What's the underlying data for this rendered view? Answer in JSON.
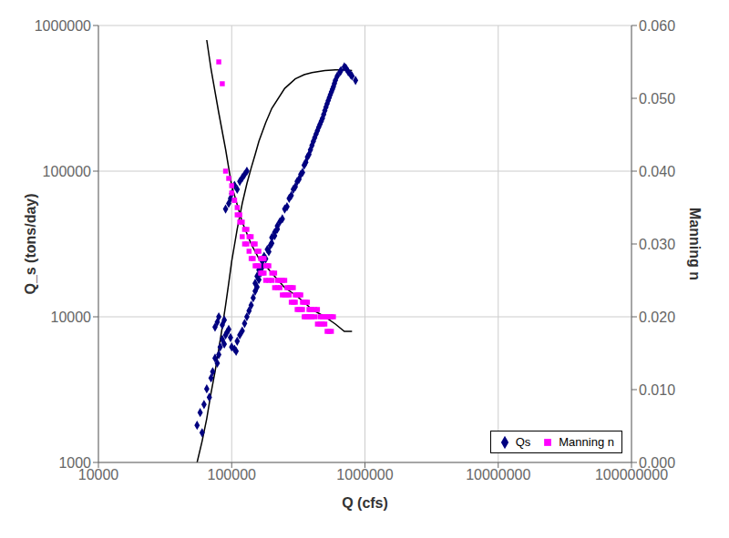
{
  "chart_data": {
    "type": "scatter",
    "xlabel": "Q (cfs)",
    "ylabel": "Q_s (tons/day)",
    "y2label": "Manning n",
    "log": true,
    "grid": true,
    "legend": "lower right",
    "xlim": [
      10000,
      100000000
    ],
    "xticks": [
      10000,
      100000,
      1000000,
      10000000,
      100000000
    ],
    "ylim": [
      1000,
      1000000
    ],
    "yticks": [
      1000,
      10000,
      100000,
      1000000
    ],
    "y2lim": [
      0.0,
      0.06
    ],
    "y2ticks": [
      {
        "value": 0.0,
        "label": "0.000"
      },
      {
        "value": 0.01,
        "label": "0.010"
      },
      {
        "value": 0.02,
        "label": "0.020"
      },
      {
        "value": 0.03,
        "label": "0.030"
      },
      {
        "value": 0.04,
        "label": "0.040"
      },
      {
        "value": 0.05,
        "label": "0.050"
      },
      {
        "value": 0.06,
        "label": "0.060"
      }
    ],
    "series": [
      {
        "name": "Qs",
        "type": "scatter",
        "marker": "diamond",
        "color": "#000080",
        "x": [
          55000,
          58000,
          60000,
          62000,
          65000,
          68000,
          70000,
          72000,
          75000,
          78000,
          80000,
          82000,
          85000,
          88000,
          90000,
          92000,
          95000,
          98000,
          100000,
          105000,
          108000,
          110000,
          115000,
          120000,
          125000,
          130000,
          135000,
          140000,
          145000,
          150000,
          155000,
          160000,
          165000,
          170000,
          180000,
          190000,
          200000,
          210000,
          220000,
          230000,
          250000,
          270000,
          290000,
          310000,
          330000,
          350000,
          380000,
          400000,
          420000,
          440000,
          460000,
          480000,
          500000,
          520000,
          540000,
          560000,
          580000,
          600000,
          650000,
          700000,
          750000,
          800000,
          850000,
          90000,
          95000,
          98000,
          100000,
          105000,
          110000,
          115000,
          120000,
          125000,
          130000,
          75000,
          78000,
          80000,
          85000,
          88000,
          150000,
          155000,
          160000,
          170000,
          175000,
          185000,
          195000,
          200000,
          210000,
          220000,
          240000,
          260000,
          280000,
          300000,
          320000,
          340000,
          360000,
          370000,
          390000,
          410000,
          430000,
          450000,
          470000,
          490000,
          510000,
          530000,
          550000,
          570000,
          590000,
          620000,
          660000,
          720000,
          780000
        ],
        "values": [
          1800,
          2200,
          1600,
          2500,
          3200,
          2800,
          3800,
          4200,
          5200,
          4800,
          5500,
          6200,
          7000,
          6500,
          7500,
          7800,
          8200,
          7200,
          6200,
          6000,
          5800,
          6800,
          7500,
          8000,
          9000,
          10000,
          11000,
          12000,
          13500,
          15000,
          16000,
          18000,
          20000,
          22000,
          25000,
          28000,
          32000,
          36000,
          40000,
          45000,
          55000,
          65000,
          75000,
          85000,
          95000,
          110000,
          130000,
          150000,
          170000,
          190000,
          210000,
          230000,
          260000,
          290000,
          320000,
          350000,
          380000,
          420000,
          480000,
          520000,
          480000,
          450000,
          420000,
          55000,
          60000,
          65000,
          70000,
          80000,
          75000,
          85000,
          90000,
          95000,
          100000,
          8500,
          9200,
          10000,
          8800,
          9500,
          17000,
          19000,
          21000,
          24000,
          26000,
          29000,
          31000,
          35000,
          38000,
          42000,
          47000,
          57000,
          68000,
          78000,
          88000,
          98000,
          115000,
          125000,
          140000,
          160000,
          180000,
          200000,
          220000,
          245000,
          275000,
          305000,
          335000,
          365000,
          400000,
          450000,
          490000,
          510000,
          460000
        ]
      },
      {
        "type": "line",
        "color": "#000000",
        "x": [
          55000,
          60000,
          65000,
          70000,
          75000,
          80000,
          85000,
          90000,
          95000,
          100000,
          110000,
          120000,
          130000,
          140000,
          150000,
          160000,
          180000,
          200000,
          250000,
          300000,
          350000,
          400000,
          500000,
          600000,
          700000,
          800000
        ],
        "values": [
          1000,
          1400,
          2000,
          3000,
          4200,
          6000,
          8500,
          12000,
          17000,
          24000,
          40000,
          60000,
          82000,
          105000,
          130000,
          160000,
          215000,
          270000,
          370000,
          430000,
          460000,
          475000,
          490000,
          495000,
          495000,
          490000
        ]
      },
      {
        "name": "Manning n",
        "type": "scatter",
        "marker": "square",
        "color": "#FF00FF",
        "axis": "y2",
        "x": [
          80000,
          85000,
          90000,
          95000,
          100000,
          105000,
          110000,
          115000,
          120000,
          125000,
          130000,
          135000,
          140000,
          145000,
          150000,
          155000,
          160000,
          165000,
          170000,
          175000,
          180000,
          185000,
          190000,
          200000,
          210000,
          220000,
          230000,
          240000,
          250000,
          260000,
          270000,
          280000,
          290000,
          300000,
          310000,
          320000,
          330000,
          340000,
          350000,
          360000,
          370000,
          380000,
          390000,
          400000,
          420000,
          440000,
          460000,
          480000,
          500000,
          520000,
          540000,
          560000,
          580000,
          100000,
          105000,
          110000,
          115000,
          120000,
          125000,
          130000,
          135000,
          140000,
          145000,
          150000,
          155000,
          160000,
          165000,
          170000,
          175000,
          180000,
          190000,
          200000,
          210000,
          220000,
          230000,
          240000,
          250000,
          260000,
          270000,
          280000,
          290000,
          300000,
          310000,
          320000,
          330000,
          340000,
          350000,
          360000,
          370000,
          380000,
          390000,
          400000,
          420000,
          440000,
          460000,
          480000,
          500000,
          520000,
          540000,
          560000
        ],
        "values": [
          0.055,
          0.052,
          0.04,
          0.039,
          0.038,
          0.036,
          0.035,
          0.034,
          0.033,
          0.032,
          0.032,
          0.031,
          0.031,
          0.03,
          0.03,
          0.029,
          0.029,
          0.028,
          0.028,
          0.028,
          0.027,
          0.027,
          0.027,
          0.026,
          0.026,
          0.025,
          0.025,
          0.025,
          0.025,
          0.024,
          0.024,
          0.024,
          0.024,
          0.023,
          0.023,
          0.023,
          0.023,
          0.022,
          0.022,
          0.022,
          0.022,
          0.021,
          0.021,
          0.021,
          0.021,
          0.021,
          0.02,
          0.02,
          0.02,
          0.02,
          0.02,
          0.02,
          0.02,
          0.037,
          0.036,
          0.034,
          0.033,
          0.031,
          0.03,
          0.03,
          0.029,
          0.028,
          0.028,
          0.027,
          0.027,
          0.027,
          0.026,
          0.026,
          0.026,
          0.025,
          0.025,
          0.025,
          0.024,
          0.024,
          0.024,
          0.023,
          0.023,
          0.023,
          0.023,
          0.022,
          0.022,
          0.022,
          0.021,
          0.021,
          0.021,
          0.021,
          0.02,
          0.02,
          0.02,
          0.02,
          0.02,
          0.02,
          0.02,
          0.019,
          0.019,
          0.019,
          0.019,
          0.018,
          0.018,
          0.018
        ]
      },
      {
        "type": "line",
        "color": "#000000",
        "axis": "y2",
        "x": [
          65000,
          70000,
          80000,
          90000,
          100000,
          120000,
          140000,
          160000,
          180000,
          200000,
          250000,
          300000,
          350000,
          400000,
          500000,
          600000,
          700000,
          800000
        ],
        "values": [
          0.058,
          0.054,
          0.048,
          0.043,
          0.038,
          0.033,
          0.03,
          0.028,
          0.027,
          0.026,
          0.024,
          0.023,
          0.022,
          0.021,
          0.02,
          0.019,
          0.018,
          0.018
        ]
      }
    ]
  }
}
